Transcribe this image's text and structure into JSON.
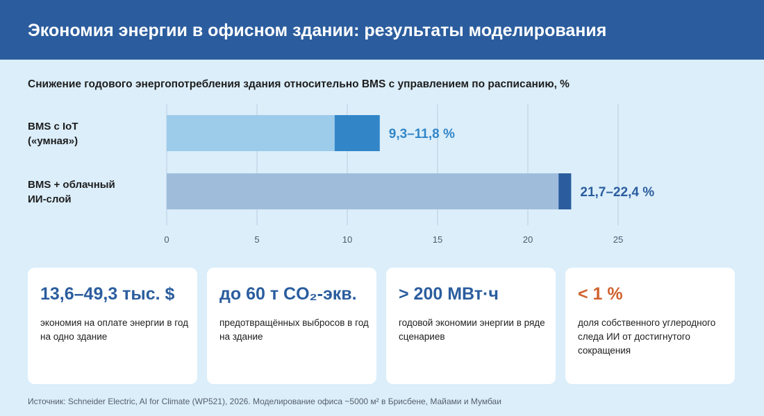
{
  "header": {
    "title": "Экономия энергии в офисном здании: результаты моделирования"
  },
  "chart_data": {
    "type": "bar",
    "orientation": "horizontal",
    "title": "Снижение годового энергопотребления здания относительно BMS с управлением по расписанию, %",
    "categories": [
      "BMS с IoT\n(«умная»)",
      "BMS + облачный\nИИ-слой"
    ],
    "series": [
      {
        "name": "",
        "values": [
          9.3,
          21.7
        ]
      },
      {
        "name": "",
        "values": [
          11.8,
          22.4
        ]
      }
    ],
    "value_labels": [
      "9,3–11,8 %",
      "21,7–22,4 %"
    ],
    "xlim": [
      0,
      25
    ],
    "xticks": [
      0,
      5,
      10,
      15,
      20,
      25
    ],
    "grid": true,
    "colors": {
      "bar1_low": "#9dcbea",
      "bar1_range": "#3286c8",
      "bar1_label": "#3286c8",
      "bar2_low": "#9fbddb",
      "bar2_range": "#2b5d9e",
      "bar2_label": "#2b5d9e"
    }
  },
  "cards": [
    {
      "value": "13,6–49,3 тыс. $",
      "desc": "экономия на оплате энергии в год на одно здание"
    },
    {
      "value": "до 60 т CO₂-экв.",
      "desc": "предотвращённых выбросов в год на здание"
    },
    {
      "value": "> 200 МВт·ч",
      "desc": "годовой экономии энергии в ряде сценариев"
    },
    {
      "value": "< 1 %",
      "desc": "доля собственного углеродного следа ИИ от достигнутого сокращения"
    }
  ],
  "source": "Источник: Schneider Electric, AI for Climate (WP521), 2026. Моделирование офиса ~5000 м² в Брисбене, Майами и Мумбаи"
}
